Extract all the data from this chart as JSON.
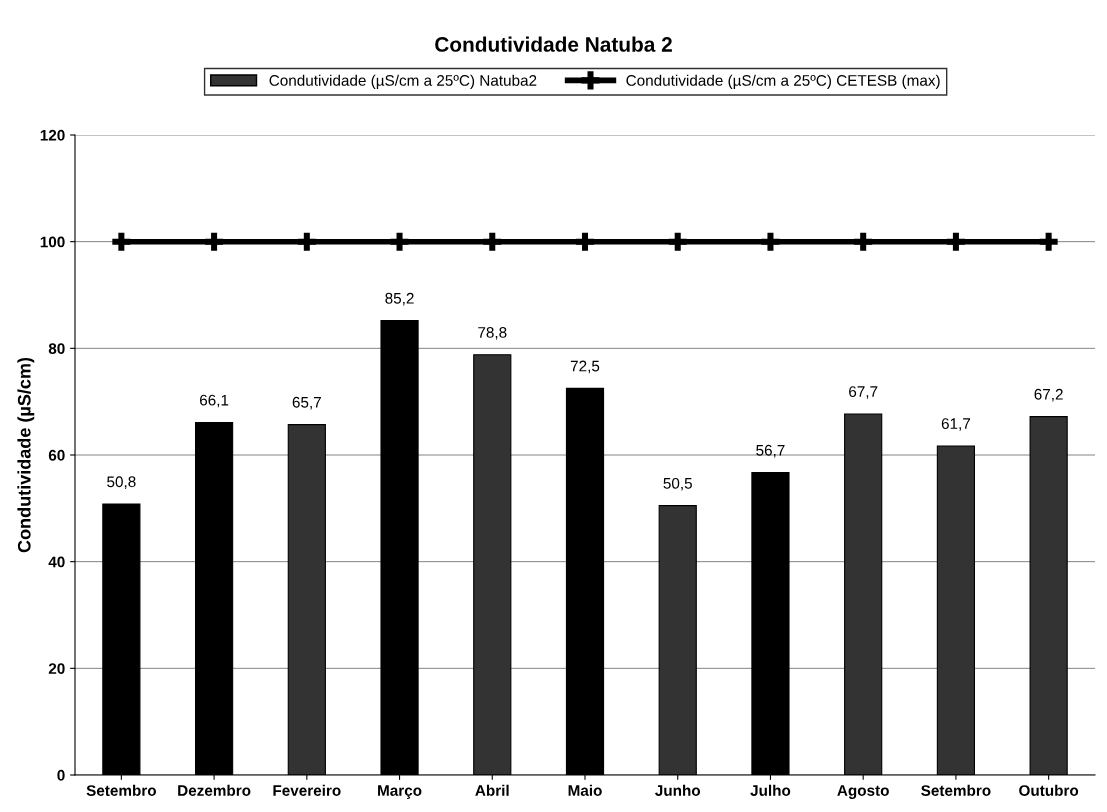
{
  "chart_data": {
    "type": "bar",
    "title": "Condutividade Natuba 2",
    "ylabel": "Condutividade (µS/cm)",
    "categories": [
      "Setembro",
      "Dezembro",
      "Fevereiro",
      "Março",
      "Abril",
      "Maio",
      "Junho",
      "Julho",
      "Agosto",
      "Setembro",
      "Outubro"
    ],
    "series": [
      {
        "name": "Condutividade (µS/cm a 25ºC) Natuba2",
        "color": "#333333",
        "colors": [
          "#000000",
          "#000000",
          "#333333",
          "#000000",
          "#333333",
          "#000000",
          "#333333",
          "#000000",
          "#333333",
          "#333333",
          "#333333"
        ],
        "values": [
          50.8,
          66.1,
          65.7,
          85.2,
          78.8,
          72.5,
          50.5,
          56.7,
          67.7,
          61.7,
          67.2
        ],
        "value_labels": [
          "50,8",
          "66,1",
          "65,7",
          "85,2",
          "78,8",
          "72,5",
          "50,5",
          "56,7",
          "67,7",
          "61,7",
          "67,2"
        ]
      },
      {
        "name": "Condutividade (µS/cm a 25ºC) CETESB (max)",
        "type": "line",
        "color": "#000000",
        "marker": "cross",
        "values": [
          100,
          100,
          100,
          100,
          100,
          100,
          100,
          100,
          100,
          100,
          100
        ]
      }
    ],
    "ylim": [
      0,
      120
    ],
    "yticks": [
      0,
      20,
      40,
      60,
      80,
      100,
      120
    ],
    "grid": "y",
    "legend": "top"
  }
}
